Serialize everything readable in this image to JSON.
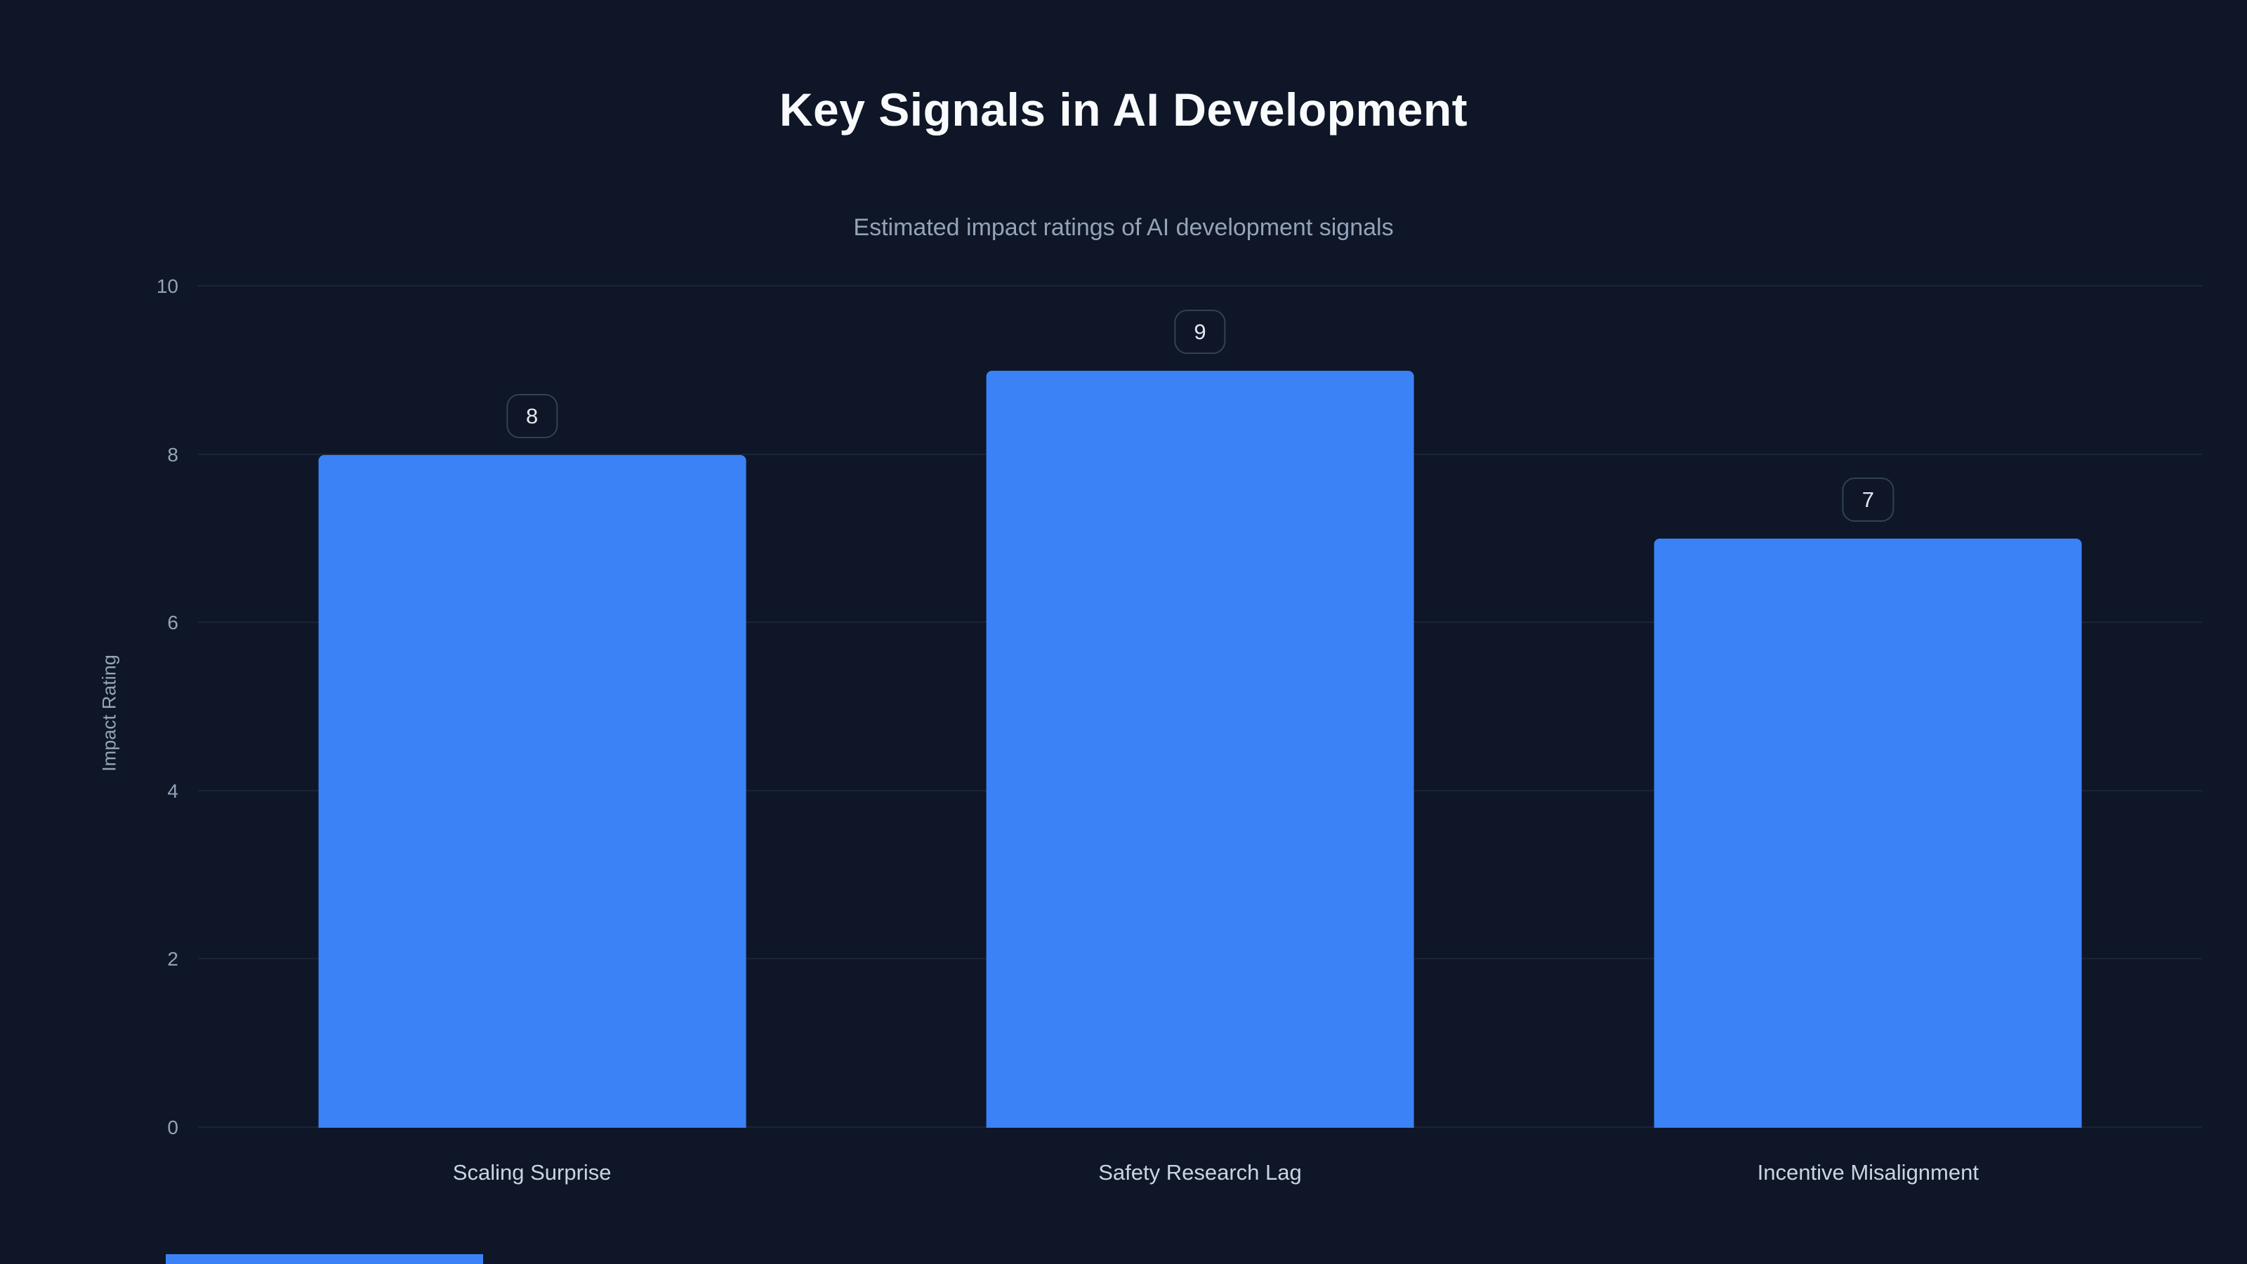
{
  "page": {
    "background": "#0e1627",
    "accent": "#3b82f6"
  },
  "chart_data": {
    "type": "bar",
    "title": "Key Signals in AI Development",
    "subtitle": "Estimated impact ratings of AI development signals",
    "categories": [
      "Scaling Surprise",
      "Safety Research Lag",
      "Incentive Misalignment"
    ],
    "values": [
      8,
      9,
      7
    ],
    "value_labels": [
      "8",
      "9",
      "7"
    ],
    "xlabel": "",
    "ylabel": "Impact Rating",
    "ylim": [
      0,
      10
    ],
    "yticks": [
      0,
      2,
      4,
      6,
      8,
      10
    ],
    "grid": true,
    "legend": false,
    "bar_color": "#3b82f6",
    "grid_color": "#1b2537",
    "title_color": "#f8fafc",
    "subtitle_color": "#94a3b8",
    "tick_color": "#94a3b8",
    "category_label_color": "#cbd5e1"
  }
}
